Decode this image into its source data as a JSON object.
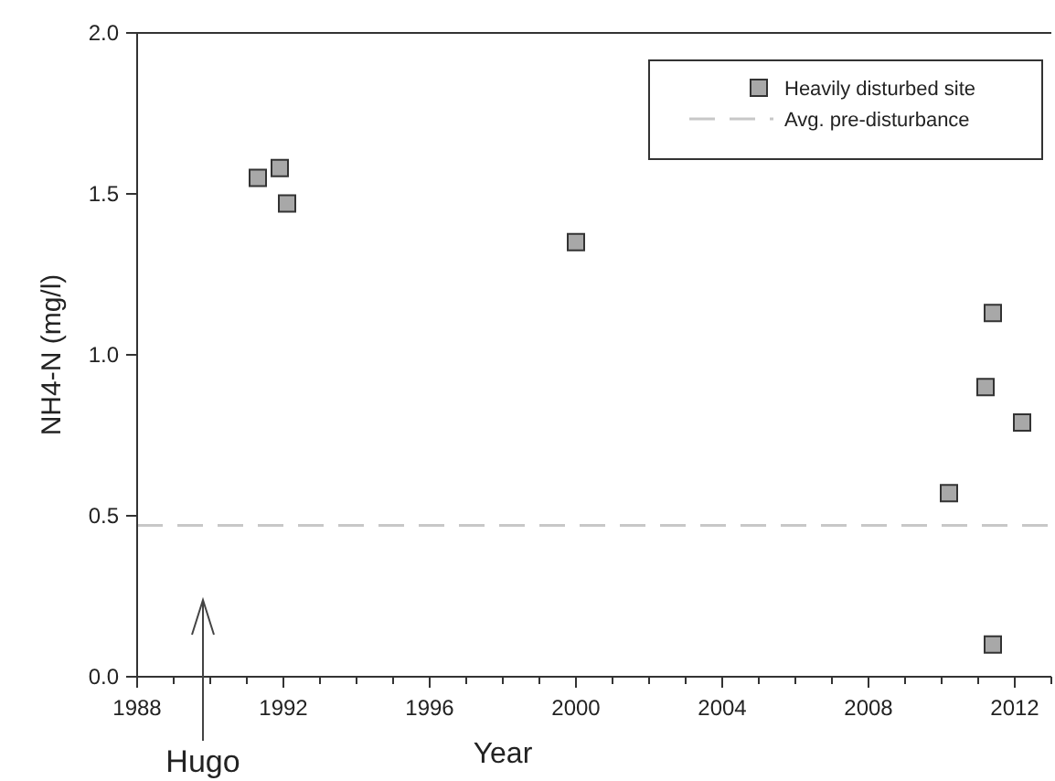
{
  "chart_data": {
    "type": "scatter",
    "xlabel": "Year",
    "ylabel": "NH4-N (mg/l)",
    "x": [
      1991.3,
      1991.9,
      1992.1,
      2000.0,
      2010.2,
      2011.2,
      2011.4,
      2012.2,
      2011.4
    ],
    "series": [
      {
        "name": "Heavily disturbed site",
        "color": "#a8a8a8",
        "values": [
          1.55,
          1.58,
          1.47,
          1.35,
          0.57,
          0.9,
          1.13,
          0.79,
          0.1
        ]
      }
    ],
    "marker": "square",
    "xlim": [
      1988,
      2013
    ],
    "xticks": [
      1988,
      {
        "value": 1989,
        "label": null
      },
      {
        "value": 1990,
        "label": null
      },
      {
        "value": 1991,
        "label": null
      },
      1992,
      {
        "value": 1993,
        "label": null
      },
      {
        "value": 1994,
        "label": null
      },
      {
        "value": 1995,
        "label": null
      },
      1996,
      {
        "value": 1997,
        "label": null
      },
      {
        "value": 1998,
        "label": null
      },
      {
        "value": 1999,
        "label": null
      },
      2000,
      {
        "value": 2001,
        "label": null
      },
      {
        "value": 2002,
        "label": null
      },
      {
        "value": 2003,
        "label": null
      },
      2004,
      {
        "value": 2005,
        "label": null
      },
      {
        "value": 2006,
        "label": null
      },
      {
        "value": 2007,
        "label": null
      },
      2008,
      {
        "value": 2009,
        "label": null
      },
      {
        "value": 2010,
        "label": null
      },
      {
        "value": 2011,
        "label": null
      },
      2012,
      {
        "value": 2013,
        "label": null
      }
    ],
    "ylim": [
      0,
      2
    ],
    "yticks": [
      {
        "value": 0,
        "label": "0.0"
      },
      {
        "value": 0.5,
        "label": "0.5"
      },
      {
        "value": 1,
        "label": "1.0"
      },
      {
        "value": 1.5,
        "label": "1.5"
      },
      {
        "value": 2,
        "label": "2.0"
      }
    ],
    "ref_lines": [
      {
        "axis": "y",
        "value": 0.47,
        "label": "Avg. pre-disturbance",
        "color": "#c8c8c8",
        "line_style": "dashed"
      }
    ],
    "annotations": [
      "Hugo"
    ],
    "legend": "top right",
    "grid": false
  }
}
